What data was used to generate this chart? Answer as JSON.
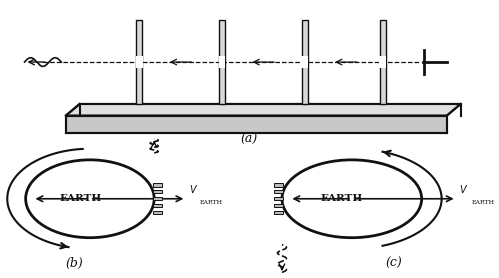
{
  "bg_color": "#ffffff",
  "fig_width": 4.99,
  "fig_height": 2.78,
  "dpi": 100,
  "label_a": "(a)",
  "label_b": "(b)",
  "label_c": "(c)",
  "earth_label": "EARTH",
  "line_color": "#111111",
  "text_color": "#111111"
}
